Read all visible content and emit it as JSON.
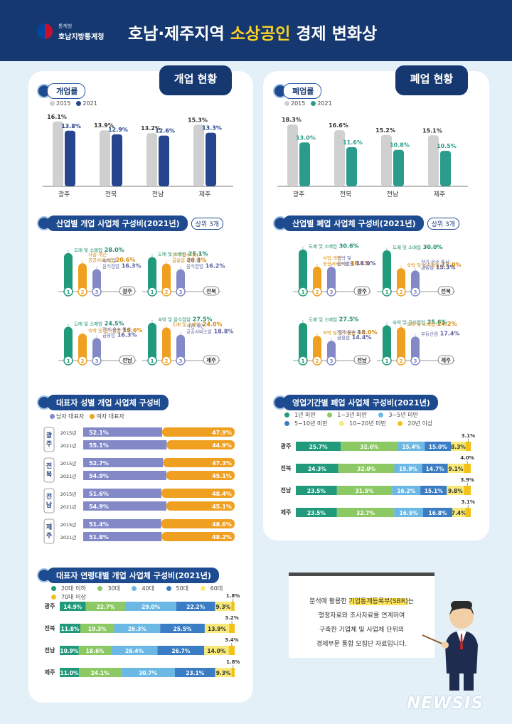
{
  "header": {
    "org_small": "통계청",
    "org_name": "호남지방통계청",
    "title_pre": "호남·제주지역 ",
    "title_hl": "소상공인",
    "title_post": " 경제 변화상"
  },
  "tabs": {
    "open": "개업 현황",
    "close": "폐업 현황"
  },
  "sections": {
    "open_rate": "개업률",
    "close_rate": "폐업률",
    "open_industry": "산업별 개업 사업체 구성비(2021년)",
    "close_industry": "산업별 폐업 사업체 구성비(2021년)",
    "top3": "상위 3개",
    "gender": "대표자 성별 개업 사업체 구성비",
    "duration": "영업기간별 폐업 사업체 구성비(2021년)",
    "age": "대표자 연령대별 개업 사업체 구성비(2021년)"
  },
  "icons": {
    "open": "OPEN",
    "close": "CLOSE"
  },
  "colors": {
    "gray": "#d0d0d0",
    "navy": "#27448f",
    "teal": "#2b9c8c",
    "orange": "#f0a020",
    "lavender": "#8389c7",
    "green": "#219a7c",
    "lightgreen": "#8cc864",
    "lightblue": "#6cb8e4",
    "midblue": "#3b7dc4",
    "lightyellow": "#f8ea78",
    "yellow": "#f4c216"
  },
  "chart_data": [
    {
      "type": "bar",
      "id": "open_rate",
      "title": "개업률",
      "categories": [
        "광주",
        "전북",
        "전남",
        "제주"
      ],
      "series": [
        {
          "name": "2015",
          "values": [
            16.1,
            13.9,
            13.2,
            15.3
          ]
        },
        {
          "name": "2021",
          "values": [
            13.8,
            12.9,
            12.6,
            13.3
          ]
        }
      ],
      "unit": "%",
      "ylim": [
        0,
        18
      ]
    },
    {
      "type": "bar",
      "id": "close_rate",
      "title": "폐업률",
      "categories": [
        "광주",
        "전북",
        "전남",
        "제주"
      ],
      "series": [
        {
          "name": "2015",
          "values": [
            18.3,
            16.6,
            15.2,
            15.1
          ]
        },
        {
          "name": "2021",
          "values": [
            13.0,
            11.6,
            10.8,
            10.5
          ]
        }
      ],
      "unit": "%",
      "ylim": [
        0,
        20
      ]
    },
    {
      "type": "bar",
      "id": "open_industry",
      "title": "산업별 개업 사업체 구성비(2021년)",
      "unit": "%",
      "ranks": [
        "1",
        "2",
        "3"
      ],
      "regions": [
        {
          "region": "광주",
          "items": [
            {
              "label": "도매 및 소매업",
              "value": 28.0
            },
            {
              "label": "사업·개인·공공서비스업",
              "value": 20.6
            },
            {
              "label": "숙박 및 음식점업",
              "value": 16.3
            }
          ]
        },
        {
          "region": "전북",
          "items": [
            {
              "label": "도매 및 소매업",
              "value": 25.1
            },
            {
              "label": "전기·운수·통신·금융업",
              "value": 20.4
            },
            {
              "label": "숙박 및 음식점업",
              "value": 16.2
            }
          ]
        },
        {
          "region": "전남",
          "items": [
            {
              "label": "도매 및 소매업",
              "value": 24.5
            },
            {
              "label": "숙박 및 음식점업",
              "value": 19.6
            },
            {
              "label": "전기·운수·통신·금융업",
              "value": 16.3
            }
          ]
        },
        {
          "region": "제주",
          "items": [
            {
              "label": "숙박 및 음식점업",
              "value": 27.5
            },
            {
              "label": "도매 및 소매업",
              "value": 24.0
            },
            {
              "label": "사업·개인·공공서비스업",
              "value": 18.8
            }
          ]
        }
      ]
    },
    {
      "type": "bar",
      "id": "close_industry",
      "title": "산업별 폐업 사업체 구성비(2021년)",
      "unit": "%",
      "ranks": [
        "1",
        "2",
        "3"
      ],
      "regions": [
        {
          "region": "광주",
          "items": [
            {
              "label": "도매 및 소매업",
              "value": 30.6
            },
            {
              "label": "사업·개인·공공서비스업",
              "value": 18.1
            },
            {
              "label": "숙박 및 음식점업",
              "value": 18.0
            }
          ]
        },
        {
          "region": "전북",
          "items": [
            {
              "label": "도매 및 소매업",
              "value": 30.0
            },
            {
              "label": "숙박 및 음식점업",
              "value": 17.0
            },
            {
              "label": "전기·운수·통신·금융업",
              "value": 15.3
            }
          ]
        },
        {
          "region": "전남",
          "items": [
            {
              "label": "도매 및 소매업",
              "value": 27.5
            },
            {
              "label": "숙박 및 음식점업",
              "value": 18.0
            },
            {
              "label": "전기·운수·통신·금융업",
              "value": 14.4
            }
          ]
        },
        {
          "region": "제주",
          "items": [
            {
              "label": "숙박 및 음식점업",
              "value": 25.6
            },
            {
              "label": "도매 및 소매업",
              "value": 24.2
            },
            {
              "label": "부동산업",
              "value": 17.4
            }
          ]
        }
      ]
    },
    {
      "type": "bar",
      "id": "gender",
      "title": "대표자 성별 개업 사업체 구성비",
      "stacked": true,
      "unit": "%",
      "series_names": [
        "남자 대표자",
        "여자 대표자"
      ],
      "regions": [
        {
          "region": "광주",
          "rows": [
            {
              "year": "2015년",
              "values": [
                52.1,
                47.9
              ]
            },
            {
              "year": "2021년",
              "values": [
                55.1,
                44.9
              ]
            }
          ]
        },
        {
          "region": "전북",
          "rows": [
            {
              "year": "2015년",
              "values": [
                52.7,
                47.3
              ]
            },
            {
              "year": "2021년",
              "values": [
                54.9,
                45.1
              ]
            }
          ]
        },
        {
          "region": "전남",
          "rows": [
            {
              "year": "2015년",
              "values": [
                51.6,
                48.4
              ]
            },
            {
              "year": "2021년",
              "values": [
                54.9,
                45.1
              ]
            }
          ]
        },
        {
          "region": "제주",
          "rows": [
            {
              "year": "2015년",
              "values": [
                51.4,
                48.6
              ]
            },
            {
              "year": "2021년",
              "values": [
                51.8,
                48.2
              ]
            }
          ]
        }
      ]
    },
    {
      "type": "bar",
      "id": "duration",
      "title": "영업기간별 폐업 사업체 구성비(2021년)",
      "stacked": true,
      "unit": "%",
      "series_names": [
        "1년 미만",
        "1~3년 미만",
        "3~5년 미만",
        "5~10년 미만",
        "10~20년 미만",
        "20년 이상"
      ],
      "categories": [
        "광주",
        "전북",
        "전남",
        "제주"
      ],
      "values": [
        [
          25.7,
          32.6,
          15.4,
          15.0,
          8.3,
          3.1
        ],
        [
          24.3,
          32.0,
          15.9,
          14.7,
          9.1,
          4.0
        ],
        [
          23.5,
          31.5,
          16.2,
          15.1,
          9.8,
          3.9
        ],
        [
          23.5,
          32.7,
          16.5,
          16.8,
          7.4,
          3.1
        ]
      ]
    },
    {
      "type": "bar",
      "id": "age",
      "title": "대표자 연령대별 개업 사업체 구성비(2021년)",
      "stacked": true,
      "unit": "%",
      "series_names": [
        "20대 이하",
        "30대",
        "40대",
        "50대",
        "60대",
        "70대 이상"
      ],
      "categories": [
        "광주",
        "전북",
        "전남",
        "제주"
      ],
      "values": [
        [
          14.9,
          22.7,
          29.0,
          22.2,
          9.3,
          1.8
        ],
        [
          11.8,
          19.3,
          26.3,
          25.5,
          13.9,
          3.2
        ],
        [
          10.9,
          18.6,
          26.4,
          26.7,
          14.0,
          3.4
        ],
        [
          11.0,
          24.1,
          30.7,
          23.1,
          9.3,
          1.8
        ]
      ]
    }
  ],
  "note": {
    "l1_pre": "분석에 활용한 ",
    "l1_mark": "기업통계등록부(SBR)",
    "l1_post": "는",
    "l2": "행정자료와 조사자료를 연계하여",
    "l3": "구축한 기업체 및 사업체 단위의",
    "l4": "경제부문 통합 모집단 자료입니다."
  },
  "watermark": "NEWSIS"
}
